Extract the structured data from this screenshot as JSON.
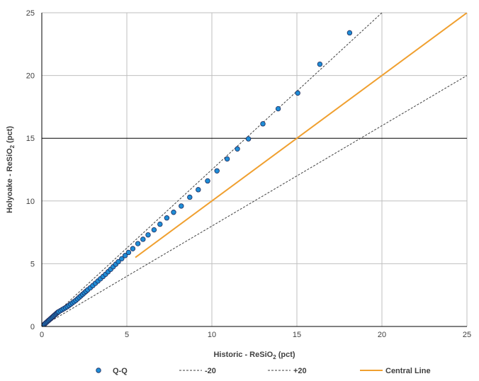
{
  "chart_data": {
    "type": "scatter",
    "xlabel_main": "Historic - ReSiO",
    "xlabel_sub": "2",
    "xlabel_tail": " (pct)",
    "ylabel_main": "Holyoake - ReSiO",
    "ylabel_sub": "2",
    "ylabel_tail": " (pct)",
    "xlim": [
      0,
      25
    ],
    "ylim": [
      0,
      25
    ],
    "xticks": [
      "0",
      "5",
      "10",
      "15",
      "20",
      "25"
    ],
    "yticks": [
      "0",
      "5",
      "10",
      "15",
      "20",
      "25"
    ],
    "grid": true,
    "legend_position": "bottom",
    "series": [
      {
        "name": "Q-Q",
        "kind": "points",
        "color": "#1F8DD6",
        "edge_color": "#1F2A5C",
        "x": [
          0.05,
          0.1,
          0.15,
          0.2,
          0.25,
          0.3,
          0.35,
          0.4,
          0.45,
          0.5,
          0.55,
          0.6,
          0.65,
          0.7,
          0.75,
          0.8,
          0.85,
          0.9,
          0.95,
          1.0,
          1.1,
          1.2,
          1.3,
          1.4,
          1.5,
          1.6,
          1.7,
          1.8,
          1.9,
          2.0,
          2.1,
          2.2,
          2.3,
          2.4,
          2.5,
          2.6,
          2.7,
          2.85,
          3.0,
          3.15,
          3.3,
          3.45,
          3.6,
          3.75,
          3.9,
          4.05,
          4.2,
          4.35,
          4.5,
          4.7,
          4.9,
          5.1,
          5.35,
          5.65,
          5.95,
          6.25,
          6.6,
          6.95,
          7.35,
          7.75,
          8.2,
          8.7,
          9.2,
          9.75,
          10.3,
          10.9,
          11.5,
          12.15,
          13.0,
          13.9,
          15.05,
          16.35,
          18.1
        ],
        "y": [
          0.05,
          0.1,
          0.17,
          0.24,
          0.3,
          0.36,
          0.42,
          0.48,
          0.54,
          0.6,
          0.66,
          0.72,
          0.78,
          0.84,
          0.9,
          0.96,
          1.02,
          1.08,
          1.14,
          1.18,
          1.26,
          1.34,
          1.42,
          1.5,
          1.58,
          1.68,
          1.78,
          1.88,
          1.98,
          2.08,
          2.2,
          2.32,
          2.44,
          2.56,
          2.68,
          2.8,
          2.92,
          3.08,
          3.26,
          3.44,
          3.62,
          3.8,
          3.98,
          4.16,
          4.36,
          4.56,
          4.76,
          4.96,
          5.16,
          5.4,
          5.65,
          5.9,
          6.2,
          6.6,
          6.95,
          7.3,
          7.7,
          8.15,
          8.65,
          9.1,
          9.6,
          10.3,
          10.9,
          11.6,
          12.4,
          13.35,
          14.15,
          14.95,
          16.15,
          17.35,
          18.6,
          20.9,
          23.4
        ]
      },
      {
        "name": "-20",
        "kind": "line",
        "style": "dashed",
        "color": "#404040",
        "x": [
          0,
          20
        ],
        "y": [
          0,
          25
        ]
      },
      {
        "name": "+20",
        "kind": "line",
        "style": "dashed",
        "color": "#404040",
        "x": [
          0,
          25
        ],
        "y": [
          0,
          20
        ]
      },
      {
        "name": "Central Line",
        "kind": "line",
        "style": "solid",
        "color": "#F0A030",
        "x": [
          5.5,
          25
        ],
        "y": [
          5.5,
          25
        ]
      }
    ],
    "dark_gridline_y": 15
  }
}
